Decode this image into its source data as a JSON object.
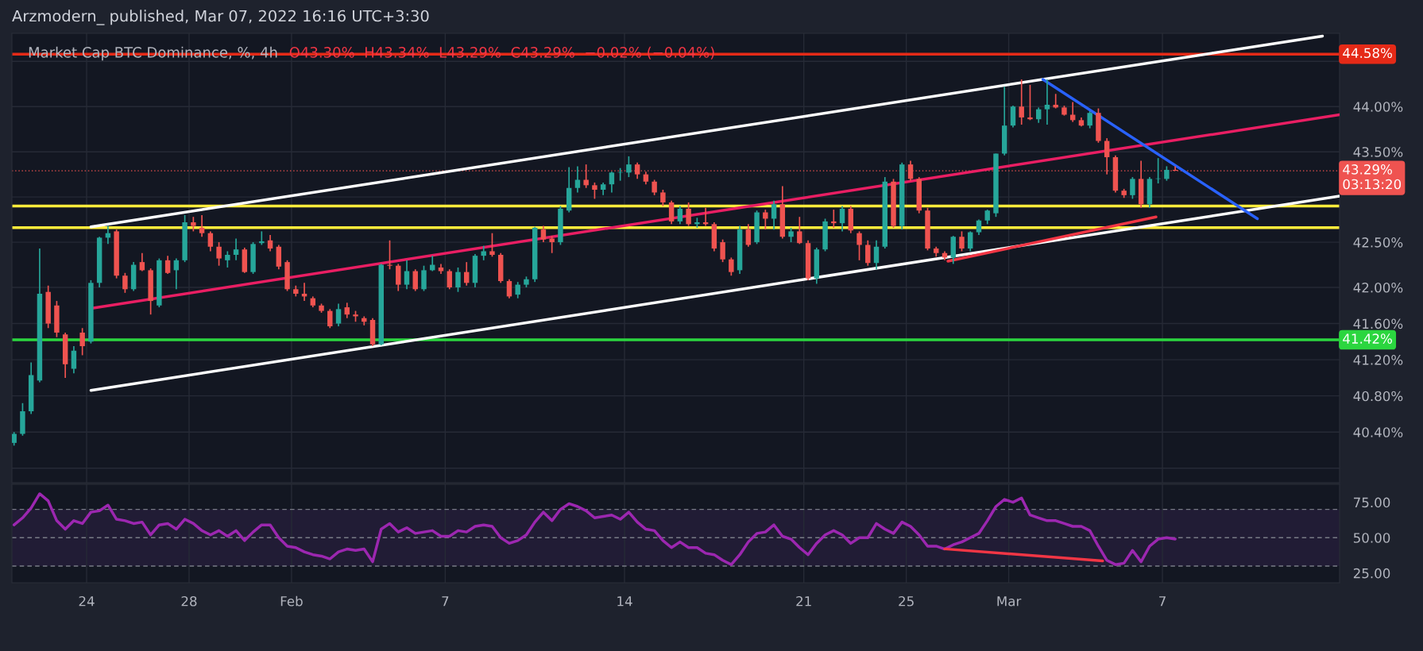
{
  "chart_data": [
    {
      "type": "candlestick",
      "title": "Arzmodern_ published, Mar 07, 2022 16:16 UTC+3:30",
      "subtitle": "Market Cap BTC Dominance, %, 4h",
      "annotations": [
        "O43.30%  H43.34%  L43.29%  C43.29%  −0.02% (−0.04%)"
      ],
      "colors": [
        "#26a69a",
        "#26a69a",
        "#26a69a",
        "#26a69a",
        "#ef5350",
        "#ef5350",
        "#ef5350",
        "#26a69a",
        "#ef5350",
        "#26a69a",
        "#26a69a",
        "#26a69a",
        "#ef5350",
        "#ef5350",
        "#26a69a",
        "#ef5350",
        "#ef5350",
        "#26a69a",
        "#ef5350",
        "#26a69a",
        "#26a69a",
        "#ef5350",
        "#ef5350",
        "#ef5350",
        "#ef5350",
        "#26a69a",
        "#26a69a",
        "#ef5350",
        "#26a69a",
        "#26a69a",
        "#ef5350",
        "#ef5350",
        "#ef5350",
        "#ef5350",
        "#ef5350",
        "#ef5350",
        "#ef5350",
        "#ef5350",
        "#26a69a",
        "#ef5350",
        "#ef5350",
        "#ef5350",
        "#ef5350",
        "#26a69a",
        "#ef5350",
        "#ef5350",
        "#26a69a",
        "#ef5350",
        "#26a69a",
        "#26a69a",
        "#ef5350",
        "#ef5350",
        "#26a69a",
        "#ef5350",
        "#26a69a",
        "#26a69a",
        "#ef5350",
        "#ef5350",
        "#ef5350",
        "#26a69a",
        "#26a69a",
        "#26a69a",
        "#ef5350",
        "#ef5350",
        "#26a69a",
        "#26a69a",
        "#26a69a",
        "#ef5350",
        "#ef5350",
        "#26a69a",
        "#26a69a",
        "#26a69a",
        "#26a69a",
        "#ef5350",
        "#ef5350",
        "#ef5350",
        "#ef5350",
        "#ef5350",
        "#26a69a",
        "#ef5350",
        "#26a69a",
        "#ef5350",
        "#ef5350",
        "#ef5350",
        "#ef5350",
        "#26a69a",
        "#ef5350",
        "#26a69a",
        "#ef5350",
        "#26a69a",
        "#ef5350",
        "#26a69a",
        "#ef5350",
        "#ef5350",
        "#26a69a",
        "#26a69a",
        "#ef5350",
        "#26a69a",
        "#ef5350",
        "#ef5350",
        "#ef5350",
        "#26a69a",
        "#26a69a",
        "#ef5350",
        "#26a69a",
        "#ef5350",
        "#ef5350",
        "#ef5350",
        "#ef5350",
        "#ef5350",
        "#26a69a",
        "#ef5350",
        "#26a69a",
        "#26a69a",
        "#26a69a",
        "#26a69a",
        "#26a69a",
        "#26a69a",
        "#ef5350",
        "#ef5350",
        "#26a69a",
        "#26a69a",
        "#ef5350",
        "#ef5350",
        "#ef5350",
        "#ef5350",
        "#26a69a",
        "#ef5350",
        "#ef5350",
        "#ef5350",
        "#ef5350",
        "#26a69a",
        "#ef5350",
        "#26a69a",
        "#26a69a",
        "#26a69a",
        "#ef5350"
      ],
      "x": [
        "2022-01-21T04:00",
        "2022-01-21T12:00",
        "2022-01-21T20:00",
        "2022-01-22T04:00",
        "2022-01-22T12:00",
        "2022-01-22T20:00",
        "2022-01-23T04:00",
        "2022-01-23T12:00",
        "2022-01-23T20:00",
        "2022-01-24T04:00",
        "2022-01-24T12:00",
        "2022-01-24T20:00",
        "2022-01-25T04:00",
        "2022-01-25T12:00",
        "2022-01-25T20:00",
        "2022-01-26T04:00",
        "2022-01-26T12:00",
        "2022-01-26T20:00",
        "2022-01-27T04:00",
        "2022-01-27T12:00",
        "2022-01-27T20:00",
        "2022-01-28T04:00",
        "2022-01-28T12:00",
        "2022-01-28T20:00",
        "2022-01-29T04:00",
        "2022-01-29T12:00",
        "2022-01-29T20:00",
        "2022-01-30T04:00",
        "2022-01-30T12:00",
        "2022-01-30T20:00",
        "2022-01-31T04:00",
        "2022-01-31T12:00",
        "2022-01-31T20:00",
        "2022-02-01T04:00",
        "2022-02-01T12:00",
        "2022-02-01T20:00",
        "2022-02-02T04:00",
        "2022-02-02T12:00",
        "2022-02-02T20:00",
        "2022-02-03T04:00",
        "2022-02-03T12:00",
        "2022-02-03T20:00",
        "2022-02-04T04:00",
        "2022-02-04T12:00",
        "2022-02-04T20:00",
        "2022-02-05T04:00",
        "2022-02-05T12:00",
        "2022-02-05T20:00",
        "2022-02-06T04:00",
        "2022-02-06T12:00",
        "2022-02-06T20:00",
        "2022-02-07T04:00",
        "2022-02-07T12:00",
        "2022-02-07T20:00",
        "2022-02-08T04:00",
        "2022-02-08T12:00",
        "2022-02-08T20:00",
        "2022-02-09T04:00",
        "2022-02-09T12:00",
        "2022-02-09T20:00",
        "2022-02-10T04:00",
        "2022-02-10T12:00",
        "2022-02-10T20:00",
        "2022-02-11T04:00",
        "2022-02-11T12:00",
        "2022-02-11T20:00",
        "2022-02-12T04:00",
        "2022-02-12T12:00",
        "2022-02-12T20:00",
        "2022-02-13T04:00",
        "2022-02-13T12:00",
        "2022-02-13T20:00",
        "2022-02-14T04:00",
        "2022-02-14T12:00",
        "2022-02-14T20:00",
        "2022-02-15T04:00",
        "2022-02-15T12:00",
        "2022-02-15T20:00",
        "2022-02-16T04:00",
        "2022-02-16T12:00",
        "2022-02-16T20:00",
        "2022-02-17T04:00",
        "2022-02-17T12:00",
        "2022-02-17T20:00",
        "2022-02-18T04:00",
        "2022-02-18T12:00",
        "2022-02-18T20:00",
        "2022-02-19T04:00",
        "2022-02-19T12:00",
        "2022-02-19T20:00",
        "2022-02-20T04:00",
        "2022-02-20T12:00",
        "2022-02-20T20:00",
        "2022-02-21T04:00",
        "2022-02-21T12:00",
        "2022-02-21T20:00",
        "2022-02-22T04:00",
        "2022-02-22T12:00",
        "2022-02-22T20:00",
        "2022-02-23T04:00",
        "2022-02-23T12:00",
        "2022-02-23T20:00",
        "2022-02-24T04:00",
        "2022-02-24T12:00",
        "2022-02-24T20:00",
        "2022-02-25T04:00",
        "2022-02-25T12:00",
        "2022-02-25T20:00",
        "2022-02-26T04:00",
        "2022-02-26T12:00",
        "2022-02-26T20:00",
        "2022-02-27T04:00",
        "2022-02-27T12:00",
        "2022-02-27T20:00",
        "2022-02-28T04:00",
        "2022-02-28T12:00",
        "2022-02-28T20:00",
        "2022-03-01T04:00",
        "2022-03-01T12:00",
        "2022-03-01T20:00",
        "2022-03-02T04:00",
        "2022-03-02T12:00",
        "2022-03-02T20:00",
        "2022-03-03T04:00",
        "2022-03-03T12:00",
        "2022-03-03T20:00",
        "2022-03-04T04:00",
        "2022-03-04T12:00",
        "2022-03-04T20:00",
        "2022-03-05T04:00",
        "2022-03-05T12:00",
        "2022-03-05T20:00",
        "2022-03-06T04:00",
        "2022-03-06T12:00",
        "2022-03-06T20:00",
        "2022-03-07T04:00",
        "2022-03-07T12:00"
      ],
      "ohlc": [
        [
          40.28,
          40.4,
          40.25,
          40.38
        ],
        [
          40.38,
          40.72,
          40.36,
          40.63
        ],
        [
          40.63,
          41.17,
          40.6,
          41.03
        ],
        [
          40.97,
          42.43,
          40.95,
          41.93
        ],
        [
          41.95,
          42.02,
          41.55,
          41.6
        ],
        [
          41.8,
          41.85,
          41.45,
          41.5
        ],
        [
          41.48,
          41.5,
          41.0,
          41.15
        ],
        [
          41.1,
          41.35,
          41.05,
          41.3
        ],
        [
          41.5,
          41.55,
          41.25,
          41.35
        ],
        [
          41.4,
          42.08,
          41.38,
          42.05
        ],
        [
          42.05,
          42.56,
          42.0,
          42.55
        ],
        [
          42.55,
          42.68,
          42.48,
          42.6
        ],
        [
          42.62,
          42.64,
          42.1,
          42.13
        ],
        [
          42.13,
          42.16,
          41.94,
          41.98
        ],
        [
          41.98,
          42.28,
          41.96,
          42.25
        ],
        [
          42.28,
          42.38,
          42.18,
          42.19
        ],
        [
          42.19,
          42.21,
          41.7,
          41.85
        ],
        [
          41.8,
          42.32,
          41.78,
          42.3
        ],
        [
          42.3,
          42.35,
          42.15,
          42.16
        ],
        [
          42.19,
          42.32,
          41.98,
          42.3
        ],
        [
          42.3,
          42.8,
          42.28,
          42.72
        ],
        [
          42.72,
          42.78,
          42.62,
          42.68
        ],
        [
          42.66,
          42.8,
          42.56,
          42.6
        ],
        [
          42.6,
          42.62,
          42.4,
          42.45
        ],
        [
          42.45,
          42.5,
          42.24,
          42.32
        ],
        [
          42.3,
          42.4,
          42.22,
          42.36
        ],
        [
          42.36,
          42.54,
          42.3,
          42.42
        ],
        [
          42.42,
          42.44,
          42.16,
          42.17
        ],
        [
          42.17,
          42.5,
          42.15,
          42.48
        ],
        [
          42.49,
          42.62,
          42.47,
          42.51
        ],
        [
          42.52,
          42.58,
          42.4,
          42.43
        ],
        [
          42.45,
          42.47,
          42.2,
          42.23
        ],
        [
          42.28,
          42.3,
          41.96,
          41.98
        ],
        [
          41.98,
          42.02,
          41.9,
          41.93
        ],
        [
          41.93,
          42.05,
          41.85,
          41.9
        ],
        [
          41.88,
          41.9,
          41.78,
          41.8
        ],
        [
          41.8,
          41.82,
          41.72,
          41.74
        ],
        [
          41.74,
          41.76,
          41.55,
          41.57
        ],
        [
          41.6,
          41.82,
          41.57,
          41.76
        ],
        [
          41.78,
          41.83,
          41.66,
          41.7
        ],
        [
          41.7,
          41.74,
          41.62,
          41.68
        ],
        [
          41.66,
          41.68,
          41.58,
          41.62
        ],
        [
          41.64,
          41.66,
          41.35,
          41.37
        ],
        [
          41.37,
          42.26,
          41.36,
          42.25
        ],
        [
          42.25,
          42.52,
          42.2,
          42.24
        ],
        [
          42.24,
          42.26,
          41.96,
          42.03
        ],
        [
          42.03,
          42.3,
          41.98,
          42.18
        ],
        [
          42.18,
          42.2,
          41.96,
          41.98
        ],
        [
          41.98,
          42.24,
          41.96,
          42.19
        ],
        [
          42.19,
          42.35,
          42.18,
          42.25
        ],
        [
          42.22,
          42.26,
          42.15,
          42.18
        ],
        [
          42.18,
          42.2,
          41.98,
          42.0
        ],
        [
          42.0,
          42.22,
          41.95,
          42.17
        ],
        [
          42.17,
          42.28,
          42.02,
          42.05
        ],
        [
          42.05,
          42.37,
          42.0,
          42.35
        ],
        [
          42.35,
          42.46,
          42.3,
          42.4
        ],
        [
          42.4,
          42.6,
          42.34,
          42.36
        ],
        [
          42.36,
          42.38,
          42.05,
          42.07
        ],
        [
          42.07,
          42.09,
          41.88,
          41.9
        ],
        [
          41.92,
          42.06,
          41.88,
          42.03
        ],
        [
          42.03,
          42.12,
          42.0,
          42.09
        ],
        [
          42.09,
          42.67,
          42.06,
          42.66
        ],
        [
          42.64,
          42.68,
          42.5,
          42.53
        ],
        [
          42.54,
          42.57,
          42.38,
          42.5
        ],
        [
          42.5,
          42.9,
          42.47,
          42.87
        ],
        [
          42.85,
          43.33,
          42.83,
          43.1
        ],
        [
          43.1,
          43.34,
          43.05,
          43.19
        ],
        [
          43.19,
          43.36,
          43.1,
          43.13
        ],
        [
          43.13,
          43.16,
          42.98,
          43.08
        ],
        [
          43.08,
          43.16,
          43.02,
          43.14
        ],
        [
          43.14,
          43.28,
          43.05,
          43.27
        ],
        [
          43.27,
          43.32,
          43.18,
          43.27
        ],
        [
          43.27,
          43.45,
          43.22,
          43.36
        ],
        [
          43.36,
          43.38,
          43.2,
          43.25
        ],
        [
          43.25,
          43.28,
          43.14,
          43.17
        ],
        [
          43.17,
          43.19,
          43.02,
          43.05
        ],
        [
          43.05,
          43.08,
          42.9,
          42.94
        ],
        [
          42.94,
          42.96,
          42.7,
          42.73
        ],
        [
          42.73,
          42.9,
          42.7,
          42.87
        ],
        [
          42.87,
          42.94,
          42.68,
          42.7
        ],
        [
          42.7,
          42.77,
          42.66,
          42.72
        ],
        [
          42.72,
          42.88,
          42.68,
          42.7
        ],
        [
          42.7,
          42.72,
          42.4,
          42.43
        ],
        [
          42.5,
          42.53,
          42.28,
          42.31
        ],
        [
          42.31,
          42.33,
          42.13,
          42.17
        ],
        [
          42.19,
          42.68,
          42.15,
          42.64
        ],
        [
          42.64,
          42.7,
          42.45,
          42.47
        ],
        [
          42.5,
          42.85,
          42.48,
          42.83
        ],
        [
          42.83,
          42.86,
          42.64,
          42.76
        ],
        [
          42.76,
          42.96,
          42.64,
          42.92
        ],
        [
          42.92,
          43.12,
          42.54,
          42.56
        ],
        [
          42.56,
          42.66,
          42.5,
          42.62
        ],
        [
          42.62,
          42.78,
          42.48,
          42.49
        ],
        [
          42.49,
          42.52,
          42.08,
          42.1
        ],
        [
          42.1,
          42.44,
          42.04,
          42.42
        ],
        [
          42.42,
          42.76,
          42.4,
          42.73
        ],
        [
          42.73,
          42.86,
          42.66,
          42.71
        ],
        [
          42.71,
          42.9,
          42.62,
          42.87
        ],
        [
          42.87,
          42.9,
          42.6,
          42.63
        ],
        [
          42.6,
          42.62,
          42.3,
          42.47
        ],
        [
          42.47,
          42.52,
          42.24,
          42.27
        ],
        [
          42.27,
          42.52,
          42.2,
          42.45
        ],
        [
          42.45,
          43.22,
          42.43,
          43.17
        ],
        [
          43.17,
          43.2,
          42.66,
          42.68
        ],
        [
          42.68,
          43.38,
          42.64,
          43.36
        ],
        [
          43.36,
          43.4,
          43.18,
          43.2
        ],
        [
          43.2,
          43.22,
          42.82,
          42.85
        ],
        [
          42.85,
          42.88,
          42.41,
          42.43
        ],
        [
          42.43,
          42.45,
          42.34,
          42.38
        ],
        [
          42.38,
          42.4,
          42.3,
          42.33
        ],
        [
          42.33,
          42.57,
          42.26,
          42.56
        ],
        [
          42.56,
          42.62,
          42.4,
          42.43
        ],
        [
          42.43,
          42.62,
          42.4,
          42.61
        ],
        [
          42.61,
          42.75,
          42.58,
          42.74
        ],
        [
          42.74,
          42.86,
          42.7,
          42.85
        ],
        [
          42.82,
          43.48,
          42.78,
          43.48
        ],
        [
          43.48,
          44.22,
          43.46,
          43.79
        ],
        [
          43.79,
          44.01,
          43.77,
          44.0
        ],
        [
          44.0,
          44.3,
          43.8,
          43.88
        ],
        [
          43.88,
          44.24,
          43.85,
          43.86
        ],
        [
          43.86,
          43.99,
          43.82,
          43.97
        ],
        [
          43.97,
          44.3,
          43.8,
          44.02
        ],
        [
          44.02,
          44.14,
          43.98,
          43.99
        ],
        [
          43.99,
          44.01,
          43.9,
          43.91
        ],
        [
          43.91,
          44.05,
          43.83,
          43.85
        ],
        [
          43.85,
          43.88,
          43.78,
          43.79
        ],
        [
          43.79,
          43.95,
          43.76,
          43.93
        ],
        [
          43.93,
          43.98,
          43.6,
          43.62
        ],
        [
          43.62,
          43.65,
          43.25,
          43.44
        ],
        [
          43.44,
          43.46,
          43.05,
          43.07
        ],
        [
          43.07,
          43.09,
          42.99,
          43.02
        ],
        [
          43.02,
          43.22,
          42.98,
          43.2
        ],
        [
          43.2,
          43.4,
          42.88,
          42.92
        ],
        [
          42.92,
          43.22,
          42.88,
          43.2
        ],
        [
          43.2,
          43.43,
          43.15,
          43.2
        ],
        [
          43.2,
          43.34,
          43.18,
          43.3
        ],
        [
          43.3,
          43.34,
          43.29,
          43.29
        ]
      ],
      "series": [
        {
          "type": "line",
          "color": "#ffffff",
          "x": [
            "2022-01-24T04:00",
            "2022-03-13T06:00"
          ],
          "values": [
            42.67,
            44.78
          ]
        },
        {
          "type": "line",
          "color": "#ffffff",
          "x": [
            "2022-01-24T04:00",
            "2022-03-13T22:00"
          ],
          "values": [
            40.86,
            43.01
          ]
        },
        {
          "type": "line",
          "color": "#e91e63",
          "x": [
            "2022-01-24T05:00",
            "2022-03-13T22:00"
          ],
          "values": [
            41.77,
            43.91
          ]
        },
        {
          "type": "line",
          "color": "#2962ff",
          "x": [
            "2022-03-02T08:00",
            "2022-03-10T17:00"
          ],
          "values": [
            44.3,
            42.76
          ]
        },
        {
          "type": "line",
          "color": "#f23645",
          "x": [
            "2022-02-26T15:00",
            "2022-03-06T18:00"
          ],
          "values": [
            42.29,
            42.78
          ]
        }
      ],
      "xlim": [
        "2022-01-21T02:00",
        "2022-03-13T22:00"
      ],
      "xticks": [
        {
          "value": "2022-01-24",
          "label": null
        },
        {
          "value": "2022-01-28",
          "label": null
        },
        {
          "value": "2022-02-01",
          "label": null
        },
        {
          "value": "2022-02-07",
          "label": null
        },
        {
          "value": "2022-02-14",
          "label": null
        },
        {
          "value": "2022-02-21",
          "label": null
        },
        {
          "value": "2022-02-25",
          "label": null
        },
        {
          "value": "2022-03-01",
          "label": null
        },
        {
          "value": "2022-03-07",
          "label": null
        }
      ],
      "ylim": [
        39.84,
        44.81
      ],
      "yticks": [
        {
          "value": 40.0,
          "label": null
        },
        {
          "value": 40.4,
          "label": "40.40%"
        },
        {
          "value": 40.8,
          "label": "40.80%"
        },
        {
          "value": 41.2,
          "label": "41.20%"
        },
        {
          "value": 41.6,
          "label": "41.60%"
        },
        {
          "value": 42.0,
          "label": "42.00%"
        },
        {
          "value": 42.5,
          "label": "42.50%"
        },
        {
          "value": 43.0,
          "label": null
        },
        {
          "value": 43.5,
          "label": "43.50%"
        },
        {
          "value": 44.0,
          "label": "44.00%"
        },
        {
          "value": 44.5,
          "label": null
        }
      ],
      "ref_lines": [
        {
          "axis": "y",
          "value": 44.58,
          "label": "44.58%",
          "color": "#e52a17",
          "line_style": "solid"
        },
        {
          "axis": "y",
          "value": 41.42,
          "label": "41.42%",
          "color": "#2bd63f",
          "line_style": "solid"
        },
        {
          "axis": "y",
          "value": 43.29,
          "label": "43.29%\n03:13:20",
          "color": "#ef5350",
          "line_style": "dotted"
        },
        {
          "axis": "y",
          "value": 42.9,
          "color": "#ffeb3b",
          "line_style": "solid"
        },
        {
          "axis": "y",
          "value": 42.66,
          "color": "#ffeb3b",
          "line_style": "solid"
        }
      ],
      "grid": true,
      "tick_labels": "y"
    },
    {
      "type": "line",
      "x": [
        "2022-01-21T04:00",
        "2022-01-21T12:00",
        "2022-01-21T20:00",
        "2022-01-22T04:00",
        "2022-01-22T12:00",
        "2022-01-22T20:00",
        "2022-01-23T04:00",
        "2022-01-23T12:00",
        "2022-01-23T20:00",
        "2022-01-24T04:00",
        "2022-01-24T12:00",
        "2022-01-24T20:00",
        "2022-01-25T04:00",
        "2022-01-25T12:00",
        "2022-01-25T20:00",
        "2022-01-26T04:00",
        "2022-01-26T12:00",
        "2022-01-26T20:00",
        "2022-01-27T04:00",
        "2022-01-27T12:00",
        "2022-01-27T20:00",
        "2022-01-28T04:00",
        "2022-01-28T12:00",
        "2022-01-28T20:00",
        "2022-01-29T04:00",
        "2022-01-29T12:00",
        "2022-01-29T20:00",
        "2022-01-30T04:00",
        "2022-01-30T12:00",
        "2022-01-30T20:00",
        "2022-01-31T04:00",
        "2022-01-31T12:00",
        "2022-01-31T20:00",
        "2022-02-01T04:00",
        "2022-02-01T12:00",
        "2022-02-01T20:00",
        "2022-02-02T04:00",
        "2022-02-02T12:00",
        "2022-02-02T20:00",
        "2022-02-03T04:00",
        "2022-02-03T12:00",
        "2022-02-03T20:00",
        "2022-02-04T04:00",
        "2022-02-04T12:00",
        "2022-02-04T20:00",
        "2022-02-05T04:00",
        "2022-02-05T12:00",
        "2022-02-05T20:00",
        "2022-02-06T04:00",
        "2022-02-06T12:00",
        "2022-02-06T20:00",
        "2022-02-07T04:00",
        "2022-02-07T12:00",
        "2022-02-07T20:00",
        "2022-02-08T04:00",
        "2022-02-08T12:00",
        "2022-02-08T20:00",
        "2022-02-09T04:00",
        "2022-02-09T12:00",
        "2022-02-09T20:00",
        "2022-02-10T04:00",
        "2022-02-10T12:00",
        "2022-02-10T20:00",
        "2022-02-11T04:00",
        "2022-02-11T12:00",
        "2022-02-11T20:00",
        "2022-02-12T04:00",
        "2022-02-12T12:00",
        "2022-02-12T20:00",
        "2022-02-13T04:00",
        "2022-02-13T12:00",
        "2022-02-13T20:00",
        "2022-02-14T04:00",
        "2022-02-14T12:00",
        "2022-02-14T20:00",
        "2022-02-15T04:00",
        "2022-02-15T12:00",
        "2022-02-15T20:00",
        "2022-02-16T04:00",
        "2022-02-16T12:00",
        "2022-02-16T20:00",
        "2022-02-17T04:00",
        "2022-02-17T12:00",
        "2022-02-17T20:00",
        "2022-02-18T04:00",
        "2022-02-18T12:00",
        "2022-02-18T20:00",
        "2022-02-19T04:00",
        "2022-02-19T12:00",
        "2022-02-19T20:00",
        "2022-02-20T04:00",
        "2022-02-20T12:00",
        "2022-02-20T20:00",
        "2022-02-21T04:00",
        "2022-02-21T12:00",
        "2022-02-21T20:00",
        "2022-02-22T04:00",
        "2022-02-22T12:00",
        "2022-02-22T20:00",
        "2022-02-23T04:00",
        "2022-02-23T12:00",
        "2022-02-23T20:00",
        "2022-02-24T04:00",
        "2022-02-24T12:00",
        "2022-02-24T20:00",
        "2022-02-25T04:00",
        "2022-02-25T12:00",
        "2022-02-25T20:00",
        "2022-02-26T04:00",
        "2022-02-26T12:00",
        "2022-02-26T20:00",
        "2022-02-27T04:00",
        "2022-02-27T12:00",
        "2022-02-27T20:00",
        "2022-02-28T04:00",
        "2022-02-28T12:00",
        "2022-02-28T20:00",
        "2022-03-01T04:00",
        "2022-03-01T12:00",
        "2022-03-01T20:00",
        "2022-03-02T04:00",
        "2022-03-02T12:00",
        "2022-03-02T20:00",
        "2022-03-03T04:00",
        "2022-03-03T12:00",
        "2022-03-03T20:00",
        "2022-03-04T04:00",
        "2022-03-04T12:00",
        "2022-03-04T20:00",
        "2022-03-05T04:00",
        "2022-03-05T12:00",
        "2022-03-05T20:00",
        "2022-03-06T04:00",
        "2022-03-06T12:00",
        "2022-03-06T20:00",
        "2022-03-07T04:00",
        "2022-03-07T12:00"
      ],
      "series": [
        {
          "type": "line",
          "color": "#9c27b0",
          "values": [
            59,
            64,
            71,
            81,
            76,
            62,
            56,
            62,
            60,
            68,
            69,
            73,
            63,
            62,
            60,
            61,
            52,
            59,
            60,
            56,
            63,
            60,
            55,
            52,
            55,
            51,
            55,
            48,
            54,
            59,
            59,
            50,
            44,
            43,
            40,
            38,
            37,
            35,
            40,
            42,
            41,
            42,
            33,
            56,
            60,
            54,
            57,
            53,
            54,
            55,
            51,
            51,
            55,
            54,
            58,
            59,
            58,
            50,
            46,
            48,
            52,
            61,
            68,
            62,
            70,
            74,
            72,
            69,
            64,
            65,
            66,
            63,
            68,
            61,
            56,
            55,
            48,
            43,
            47,
            43,
            43,
            39,
            38,
            34,
            31,
            38,
            47,
            53,
            54,
            59,
            51,
            49,
            43,
            38,
            46,
            52,
            55,
            52,
            46,
            50,
            50,
            60,
            56,
            53,
            61,
            58,
            52,
            44,
            44,
            42,
            45,
            47,
            50,
            53,
            62,
            72,
            77,
            75,
            78,
            66,
            64,
            62,
            62,
            60,
            58,
            58,
            55,
            44,
            34,
            31,
            32,
            41,
            33,
            44,
            49,
            50,
            49
          ]
        },
        {
          "type": "line",
          "color": "#f23645",
          "x": [
            "2022-02-26T12:00",
            "2022-03-04T16:00"
          ],
          "values": [
            42.1,
            33.6
          ]
        }
      ],
      "xlim": [
        "2022-01-21T02:00",
        "2022-03-13T22:00"
      ],
      "xticks": [
        {
          "value": "2022-01-24",
          "label": "24"
        },
        {
          "value": "2022-01-28",
          "label": "28"
        },
        {
          "value": "2022-02-01",
          "label": "Feb"
        },
        {
          "value": "2022-02-07",
          "label": "7"
        },
        {
          "value": "2022-02-14",
          "label": "14"
        },
        {
          "value": "2022-02-21",
          "label": "21"
        },
        {
          "value": "2022-02-25",
          "label": "25"
        },
        {
          "value": "2022-03-01",
          "label": "Mar"
        },
        {
          "value": "2022-03-07",
          "label": "7"
        }
      ],
      "ylim": [
        18.2,
        87.7
      ],
      "yticks": [
        {
          "value": 25,
          "label": "25.00"
        },
        {
          "value": 50,
          "label": "50.00"
        },
        {
          "value": 75,
          "label": "75.00"
        }
      ],
      "ref_lines": [
        {
          "axis": "y",
          "value": 30,
          "color": "#787b86",
          "line_style": "dashed"
        },
        {
          "axis": "y",
          "value": 50,
          "color": "#787b86",
          "line_style": "dashed"
        },
        {
          "axis": "y",
          "value": 70,
          "color": "#787b86",
          "line_style": "dashed"
        }
      ],
      "bands": [
        {
          "axis": "y",
          "from": 30,
          "to": 70,
          "color": "#211c35"
        }
      ],
      "grid": "x"
    }
  ]
}
